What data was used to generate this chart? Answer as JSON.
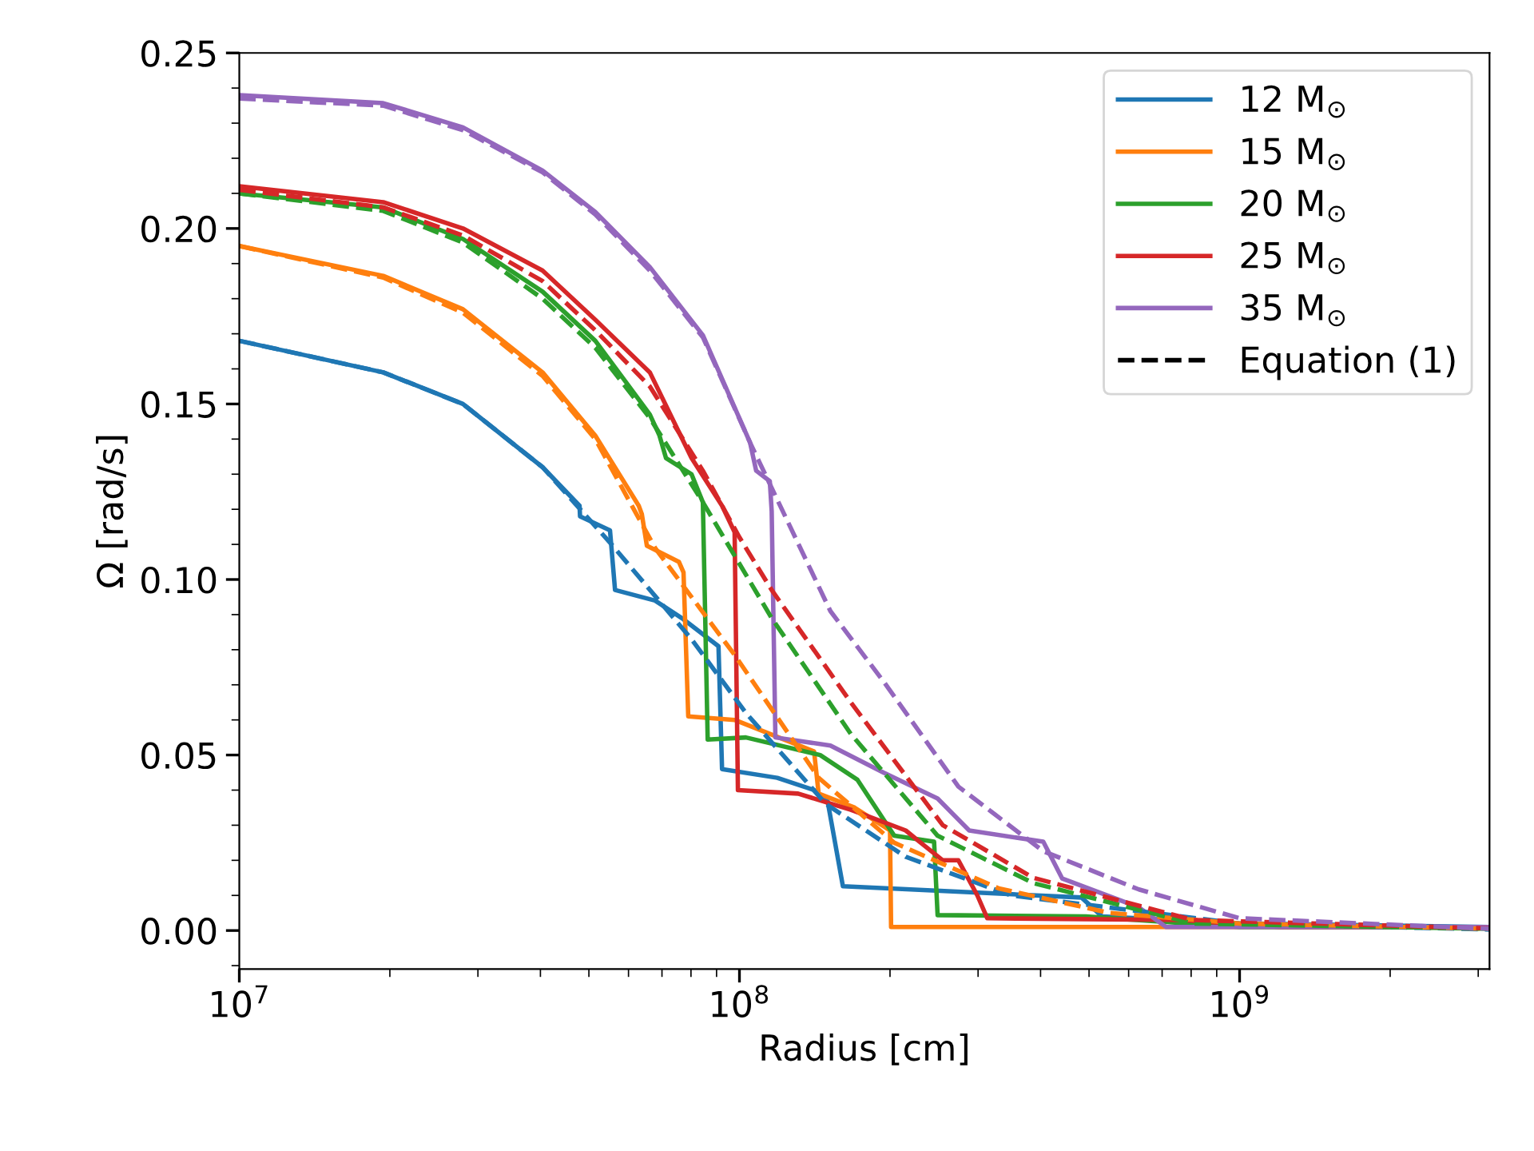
{
  "chart_data": {
    "type": "line",
    "xlabel": "Radius [cm]",
    "ylabel": "Ω [rad/s]",
    "log": "x",
    "xlim": [
      10000000.0,
      3160000000.0
    ],
    "xticks": [
      {
        "value": 10000000.0,
        "label": "10$^{7}$"
      },
      {
        "value": 100000000.0,
        "label": "10$^{8}$"
      },
      {
        "value": 1000000000.0,
        "label": "10$^{9}$"
      }
    ],
    "ylim": [
      -0.011,
      0.25
    ],
    "yticks": [
      {
        "value": 0,
        "label": "0.00"
      },
      {
        "value": 0.05,
        "label": "0.05"
      },
      {
        "value": 0.1,
        "label": "0.10"
      },
      {
        "value": 0.15,
        "label": "0.15"
      },
      {
        "value": 0.2,
        "label": "0.20"
      },
      {
        "value": 0.25,
        "label": "0.25"
      }
    ],
    "grid": false,
    "legend": "top right",
    "line_style": "solid",
    "marker": "none",
    "series": [
      {
        "name": "12 M$_{⊙}$",
        "color": "#1f77b4",
        "x": [
          10000000.0,
          19400000.0,
          28000000.0,
          40400000.0,
          47900000.0,
          48000000.0,
          55100000.0,
          56400000.0,
          67800000.0,
          76700000.0,
          90800000.0,
          92300000.0,
          119000000.0,
          141000000.0,
          150000000.0,
          161000000.0,
          483000000.0,
          531000000.0,
          1000000000.0,
          3160000000.0
        ],
        "values": [
          0.168,
          0.159,
          0.15,
          0.132,
          0.121,
          0.118,
          0.114,
          0.097,
          0.094,
          0.089,
          0.081,
          0.046,
          0.0435,
          0.04,
          0.037,
          0.0126,
          0.0094,
          0.004,
          0.002,
          0.001
        ]
      },
      {
        "name": "15 M$_{⊙}$",
        "color": "#ff7f0e",
        "x": [
          10000000.0,
          19400000.0,
          28000000.0,
          40400000.0,
          51500000.0,
          62900000.0,
          63800000.0,
          65300000.0,
          75700000.0,
          77300000.0,
          79000000.0,
          97800000.0,
          141000000.0,
          144000000.0,
          170000000.0,
          200000000.0,
          201000000.0,
          3160000000.0
        ],
        "values": [
          0.195,
          0.1865,
          0.177,
          0.159,
          0.141,
          0.121,
          0.1186,
          0.1096,
          0.105,
          0.102,
          0.061,
          0.06,
          0.051,
          0.039,
          0.035,
          0.0285,
          0.001,
          0.001
        ]
      },
      {
        "name": "20 M$_{⊙}$",
        "color": "#2ca02c",
        "x": [
          10000000.0,
          19400000.0,
          28000000.0,
          40400000.0,
          51500000.0,
          66200000.0,
          69200000.0,
          71300000.0,
          80200000.0,
          84500000.0,
          86400000.0,
          103000000.0,
          145000000.0,
          172000000.0,
          194000000.0,
          204000000.0,
          245000000.0,
          249000000.0,
          493000000.0,
          1000000000.0,
          3160000000.0
        ],
        "values": [
          0.21,
          0.206,
          0.197,
          0.182,
          0.168,
          0.147,
          0.141,
          0.1346,
          0.13,
          0.122,
          0.0544,
          0.055,
          0.05,
          0.043,
          0.0317,
          0.027,
          0.0253,
          0.0044,
          0.004,
          0.001,
          0.001
        ]
      },
      {
        "name": "25 M$_{⊙}$",
        "color": "#d62728",
        "x": [
          10000000.0,
          19400000.0,
          28000000.0,
          40400000.0,
          51500000.0,
          66200000.0,
          80200000.0,
          92300000.0,
          97800000.0,
          99300000.0,
          131000000.0,
          167000000.0,
          215000000.0,
          231000000.0,
          255000000.0,
          274000000.0,
          299000000.0,
          313000000.0,
          767000000.0,
          1200000000.0,
          3160000000.0
        ],
        "values": [
          0.212,
          0.2075,
          0.2,
          0.188,
          0.174,
          0.159,
          0.1346,
          0.121,
          0.1135,
          0.04,
          0.039,
          0.0344,
          0.0285,
          0.0249,
          0.02,
          0.02,
          0.01,
          0.0035,
          0.003,
          0.001,
          0.001
        ]
      },
      {
        "name": "35 M$_{⊙}$",
        "color": "#9467bd",
        "x": [
          10000000.0,
          19400000.0,
          28000000.0,
          40400000.0,
          51500000.0,
          66200000.0,
          84500000.0,
          105000000.0,
          108000000.0,
          115000000.0,
          116000000.0,
          118000000.0,
          152000000.0,
          194000000.0,
          249000000.0,
          288000000.0,
          405000000.0,
          442000000.0,
          629000000.0,
          713000000.0,
          3160000000.0
        ],
        "values": [
          0.238,
          0.2357,
          0.2288,
          0.2165,
          0.2047,
          0.189,
          0.1696,
          0.139,
          0.131,
          0.128,
          0.1195,
          0.055,
          0.0527,
          0.045,
          0.0376,
          0.0285,
          0.0253,
          0.0148,
          0.0066,
          0.001,
          0.001
        ]
      },
      {
        "color": "#1f77b4",
        "line_style": "dashed",
        "x": [
          10000000.0,
          19400000.0,
          28000000.0,
          40400000.0,
          55500000.0,
          80200000.0,
          103000000.0,
          149000000.0,
          215000000.0,
          349000000.0,
          1000000000.0,
          3160000000.0
        ],
        "values": [
          0.168,
          0.159,
          0.15,
          0.132,
          0.11,
          0.083,
          0.062,
          0.036,
          0.021,
          0.01,
          0.002,
          0.0003
        ]
      },
      {
        "color": "#ff7f0e",
        "line_style": "dashed",
        "x": [
          10000000.0,
          19400000.0,
          28000000.0,
          40400000.0,
          51500000.0,
          67800000.0,
          97800000.0,
          144000000.0,
          204000000.0,
          330000000.0,
          550000000.0,
          1000000000.0,
          3160000000.0
        ],
        "values": [
          0.195,
          0.186,
          0.176,
          0.158,
          0.14,
          0.109,
          0.0785,
          0.0435,
          0.025,
          0.012,
          0.005,
          0.002,
          0.0005
        ]
      },
      {
        "color": "#2ca02c",
        "line_style": "dashed",
        "x": [
          10000000.0,
          19400000.0,
          28000000.0,
          40400000.0,
          51500000.0,
          66200000.0,
          84500000.0,
          116000000.0,
          167000000.0,
          249000000.0,
          387000000.0,
          807000000.0,
          3160000000.0
        ],
        "values": [
          0.21,
          0.205,
          0.196,
          0.18,
          0.166,
          0.146,
          0.122,
          0.089,
          0.056,
          0.027,
          0.0135,
          0.002,
          0.0005
        ]
      },
      {
        "color": "#d62728",
        "line_style": "dashed",
        "x": [
          10000000.0,
          19400000.0,
          28000000.0,
          40400000.0,
          51500000.0,
          66200000.0,
          84500000.0,
          100000000.0,
          116000000.0,
          167000000.0,
          255000000.0,
          387000000.0,
          807000000.0,
          3160000000.0
        ],
        "values": [
          0.211,
          0.206,
          0.198,
          0.185,
          0.171,
          0.155,
          0.131,
          0.112,
          0.097,
          0.065,
          0.03,
          0.015,
          0.003,
          0.0006
        ]
      },
      {
        "color": "#9467bd",
        "line_style": "dashed",
        "x": [
          10000000.0,
          19400000.0,
          28000000.0,
          40400000.0,
          51500000.0,
          66200000.0,
          84500000.0,
          105000000.0,
          152000000.0,
          194000000.0,
          274000000.0,
          405000000.0,
          629000000.0,
          1000000000.0,
          3160000000.0
        ],
        "values": [
          0.237,
          0.235,
          0.228,
          0.216,
          0.204,
          0.188,
          0.169,
          0.139,
          0.091,
          0.071,
          0.041,
          0.0226,
          0.0117,
          0.0035,
          0.0005
        ]
      },
      {
        "name": "Equation (1)",
        "color": "#000000",
        "line_style": "dashed"
      }
    ]
  }
}
